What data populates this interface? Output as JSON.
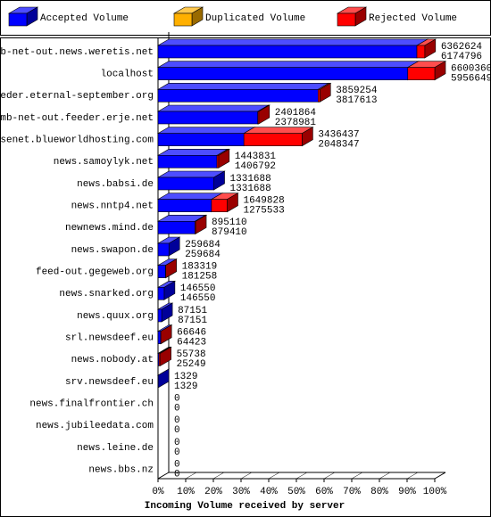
{
  "chart_data": {
    "type": "bar3d",
    "orientation": "horizontal",
    "stacked": true,
    "x_label": "Incoming Volume received by server",
    "categories": [
      "mb-net-out.news.weretis.net",
      "localhost",
      "feeder.eternal-september.org",
      "mb-net-out.feeder.erje.net",
      "usenet.blueworldhosting.com",
      "news.samoylyk.net",
      "news.babsi.de",
      "news.nntp4.net",
      "newnews.mind.de",
      "news.swapon.de",
      "feed-out.gegeweb.org",
      "news.snarked.org",
      "news.quux.org",
      "srl.newsdeef.eu",
      "news.nobody.at",
      "srv.newsdeef.eu",
      "news.finalfrontier.ch",
      "news.jubileedata.com",
      "news.leine.de",
      "news.bbs.nz"
    ],
    "series": [
      {
        "name": "Accepted Volume",
        "color": "#0000ff",
        "values": [
          6174796,
          5956649,
          3817613,
          2378981,
          2048347,
          1406792,
          1331688,
          1275533,
          879410,
          259684,
          181258,
          146550,
          87151,
          64423,
          25249,
          1329,
          0,
          0,
          0,
          0
        ]
      },
      {
        "name": "Duplicated Volume",
        "color": "#ffb000",
        "values": [
          0,
          0,
          0,
          0,
          0,
          0,
          0,
          0,
          0,
          0,
          0,
          0,
          0,
          0,
          0,
          0,
          0,
          0,
          0,
          0
        ]
      },
      {
        "name": "Rejected Volume",
        "color": "#ff0000",
        "values": [
          187828,
          643711,
          41641,
          22883,
          1388090,
          37039,
          0,
          374295,
          15700,
          0,
          2061,
          0,
          0,
          2223,
          30489,
          0,
          0,
          0,
          0,
          0
        ]
      }
    ],
    "total_labels": [
      "6362624",
      "6600360",
      "3859254",
      "2401864",
      "3436437",
      "1443831",
      "1331688",
      "1649828",
      "895110",
      "259684",
      "183319",
      "146550",
      "87151",
      "66646",
      "55738",
      "1329",
      "0",
      "0",
      "0",
      "0"
    ],
    "xlim": [
      0,
      6600360
    ],
    "xticks": [
      {
        "value": 0,
        "label": "0%"
      },
      {
        "value": 660036,
        "label": "10%"
      },
      {
        "value": 1320072,
        "label": "20%"
      },
      {
        "value": 1980108,
        "label": "30%"
      },
      {
        "value": 2640144,
        "label": "40%"
      },
      {
        "value": 3300180,
        "label": "50%"
      },
      {
        "value": 3960216,
        "label": "60%"
      },
      {
        "value": 4620252,
        "label": "70%"
      },
      {
        "value": 5280288,
        "label": "80%"
      },
      {
        "value": 5940324,
        "label": "90%"
      },
      {
        "value": 6600360,
        "label": "100%"
      }
    ]
  }
}
